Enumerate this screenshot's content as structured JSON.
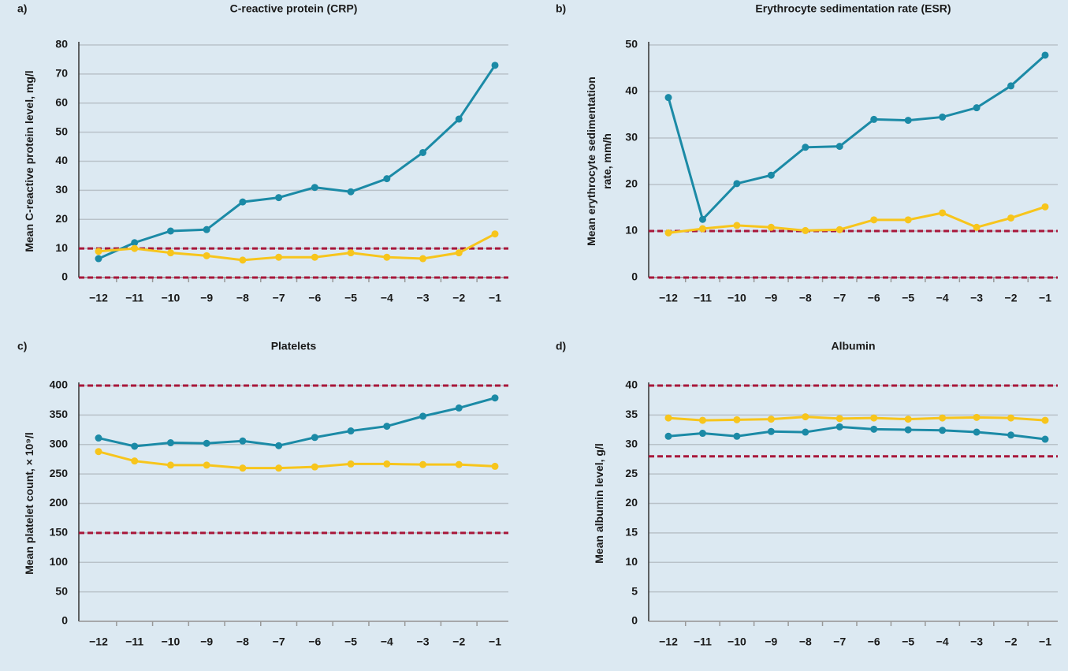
{
  "chart_data": [
    {
      "type": "line",
      "panel_label": "a)",
      "title": "C-reactive protein (CRP)",
      "y_label": [
        "Mean C-reactive protein level, mg/l"
      ],
      "categories": [
        "−12",
        "−11",
        "−10",
        "−9",
        "−8",
        "−7",
        "−6",
        "−5",
        "−4",
        "−3",
        "−2",
        "−1"
      ],
      "series": [
        {
          "color": "#1b8aa6",
          "values": [
            6.5,
            12,
            16,
            16.5,
            26,
            27.5,
            31,
            29.5,
            34,
            43,
            54.5,
            73
          ]
        },
        {
          "color": "#f7c51c",
          "values": [
            9,
            10,
            8.5,
            7.5,
            6,
            7,
            7,
            8.5,
            7,
            6.5,
            8.5,
            15
          ]
        }
      ],
      "reference_lines": {
        "color": "#a8173a",
        "values": [
          10,
          0
        ]
      },
      "ylim": [
        0,
        80
      ],
      "yticks": [
        0,
        10,
        20,
        30,
        40,
        50,
        60,
        70,
        80
      ],
      "grid": true
    },
    {
      "type": "line",
      "panel_label": "b)",
      "title": "Erythrocyte sedimentation rate (ESR)",
      "y_label": [
        "Mean erythrocyte sedimentation",
        "rate, mm/h"
      ],
      "categories": [
        "−12",
        "−11",
        "−10",
        "−9",
        "−8",
        "−7",
        "−6",
        "−5",
        "−4",
        "−3",
        "−2",
        "−1"
      ],
      "series": [
        {
          "color": "#1b8aa6",
          "values": [
            38.7,
            12.5,
            20.2,
            22,
            28,
            28.2,
            34,
            33.8,
            34.5,
            36.5,
            41.2,
            47.8
          ]
        },
        {
          "color": "#f7c51c",
          "values": [
            9.6,
            10.5,
            11.2,
            10.8,
            10.1,
            10.3,
            12.4,
            12.4,
            13.9,
            10.8,
            12.8,
            15.2
          ]
        }
      ],
      "reference_lines": {
        "color": "#a8173a",
        "values": [
          10,
          0
        ]
      },
      "ylim": [
        0,
        50
      ],
      "yticks": [
        0,
        10,
        20,
        30,
        40,
        50
      ],
      "grid": true
    },
    {
      "type": "line",
      "panel_label": "c)",
      "title": "Platelets",
      "y_label": [
        "Mean platelet count, × 10⁹/l"
      ],
      "categories": [
        "−12",
        "−11",
        "−10",
        "−9",
        "−8",
        "−7",
        "−6",
        "−5",
        "−4",
        "−3",
        "−2",
        "−1"
      ],
      "series": [
        {
          "color": "#1b8aa6",
          "values": [
            311,
            297,
            303,
            302,
            306,
            298,
            312,
            323,
            331,
            348,
            362,
            379
          ]
        },
        {
          "color": "#f7c51c",
          "values": [
            288,
            272,
            265,
            265,
            260,
            260,
            262,
            267,
            267,
            266,
            266,
            263
          ]
        }
      ],
      "reference_lines": {
        "color": "#a8173a",
        "values": [
          400,
          150
        ]
      },
      "ylim": [
        0,
        400
      ],
      "yticks": [
        0,
        50,
        100,
        150,
        200,
        250,
        300,
        350,
        400
      ],
      "grid": true
    },
    {
      "type": "line",
      "panel_label": "d)",
      "title": "Albumin",
      "y_label": [
        "Mean albumin level, g/l"
      ],
      "categories": [
        "−12",
        "−11",
        "−10",
        "−9",
        "−8",
        "−7",
        "−6",
        "−5",
        "−4",
        "−3",
        "−2",
        "−1"
      ],
      "series": [
        {
          "color": "#1b8aa6",
          "values": [
            31.4,
            31.9,
            31.4,
            32.2,
            32.1,
            33.0,
            32.6,
            32.5,
            32.4,
            32.1,
            31.6,
            30.9
          ]
        },
        {
          "color": "#f7c51c",
          "values": [
            34.5,
            34.1,
            34.2,
            34.3,
            34.7,
            34.4,
            34.5,
            34.3,
            34.5,
            34.6,
            34.5,
            34.1
          ]
        }
      ],
      "reference_lines": {
        "color": "#a8173a",
        "values": [
          40,
          28
        ]
      },
      "ylim": [
        0,
        40
      ],
      "yticks": [
        0,
        5,
        10,
        15,
        20,
        25,
        30,
        35,
        40
      ],
      "grid": true
    }
  ]
}
